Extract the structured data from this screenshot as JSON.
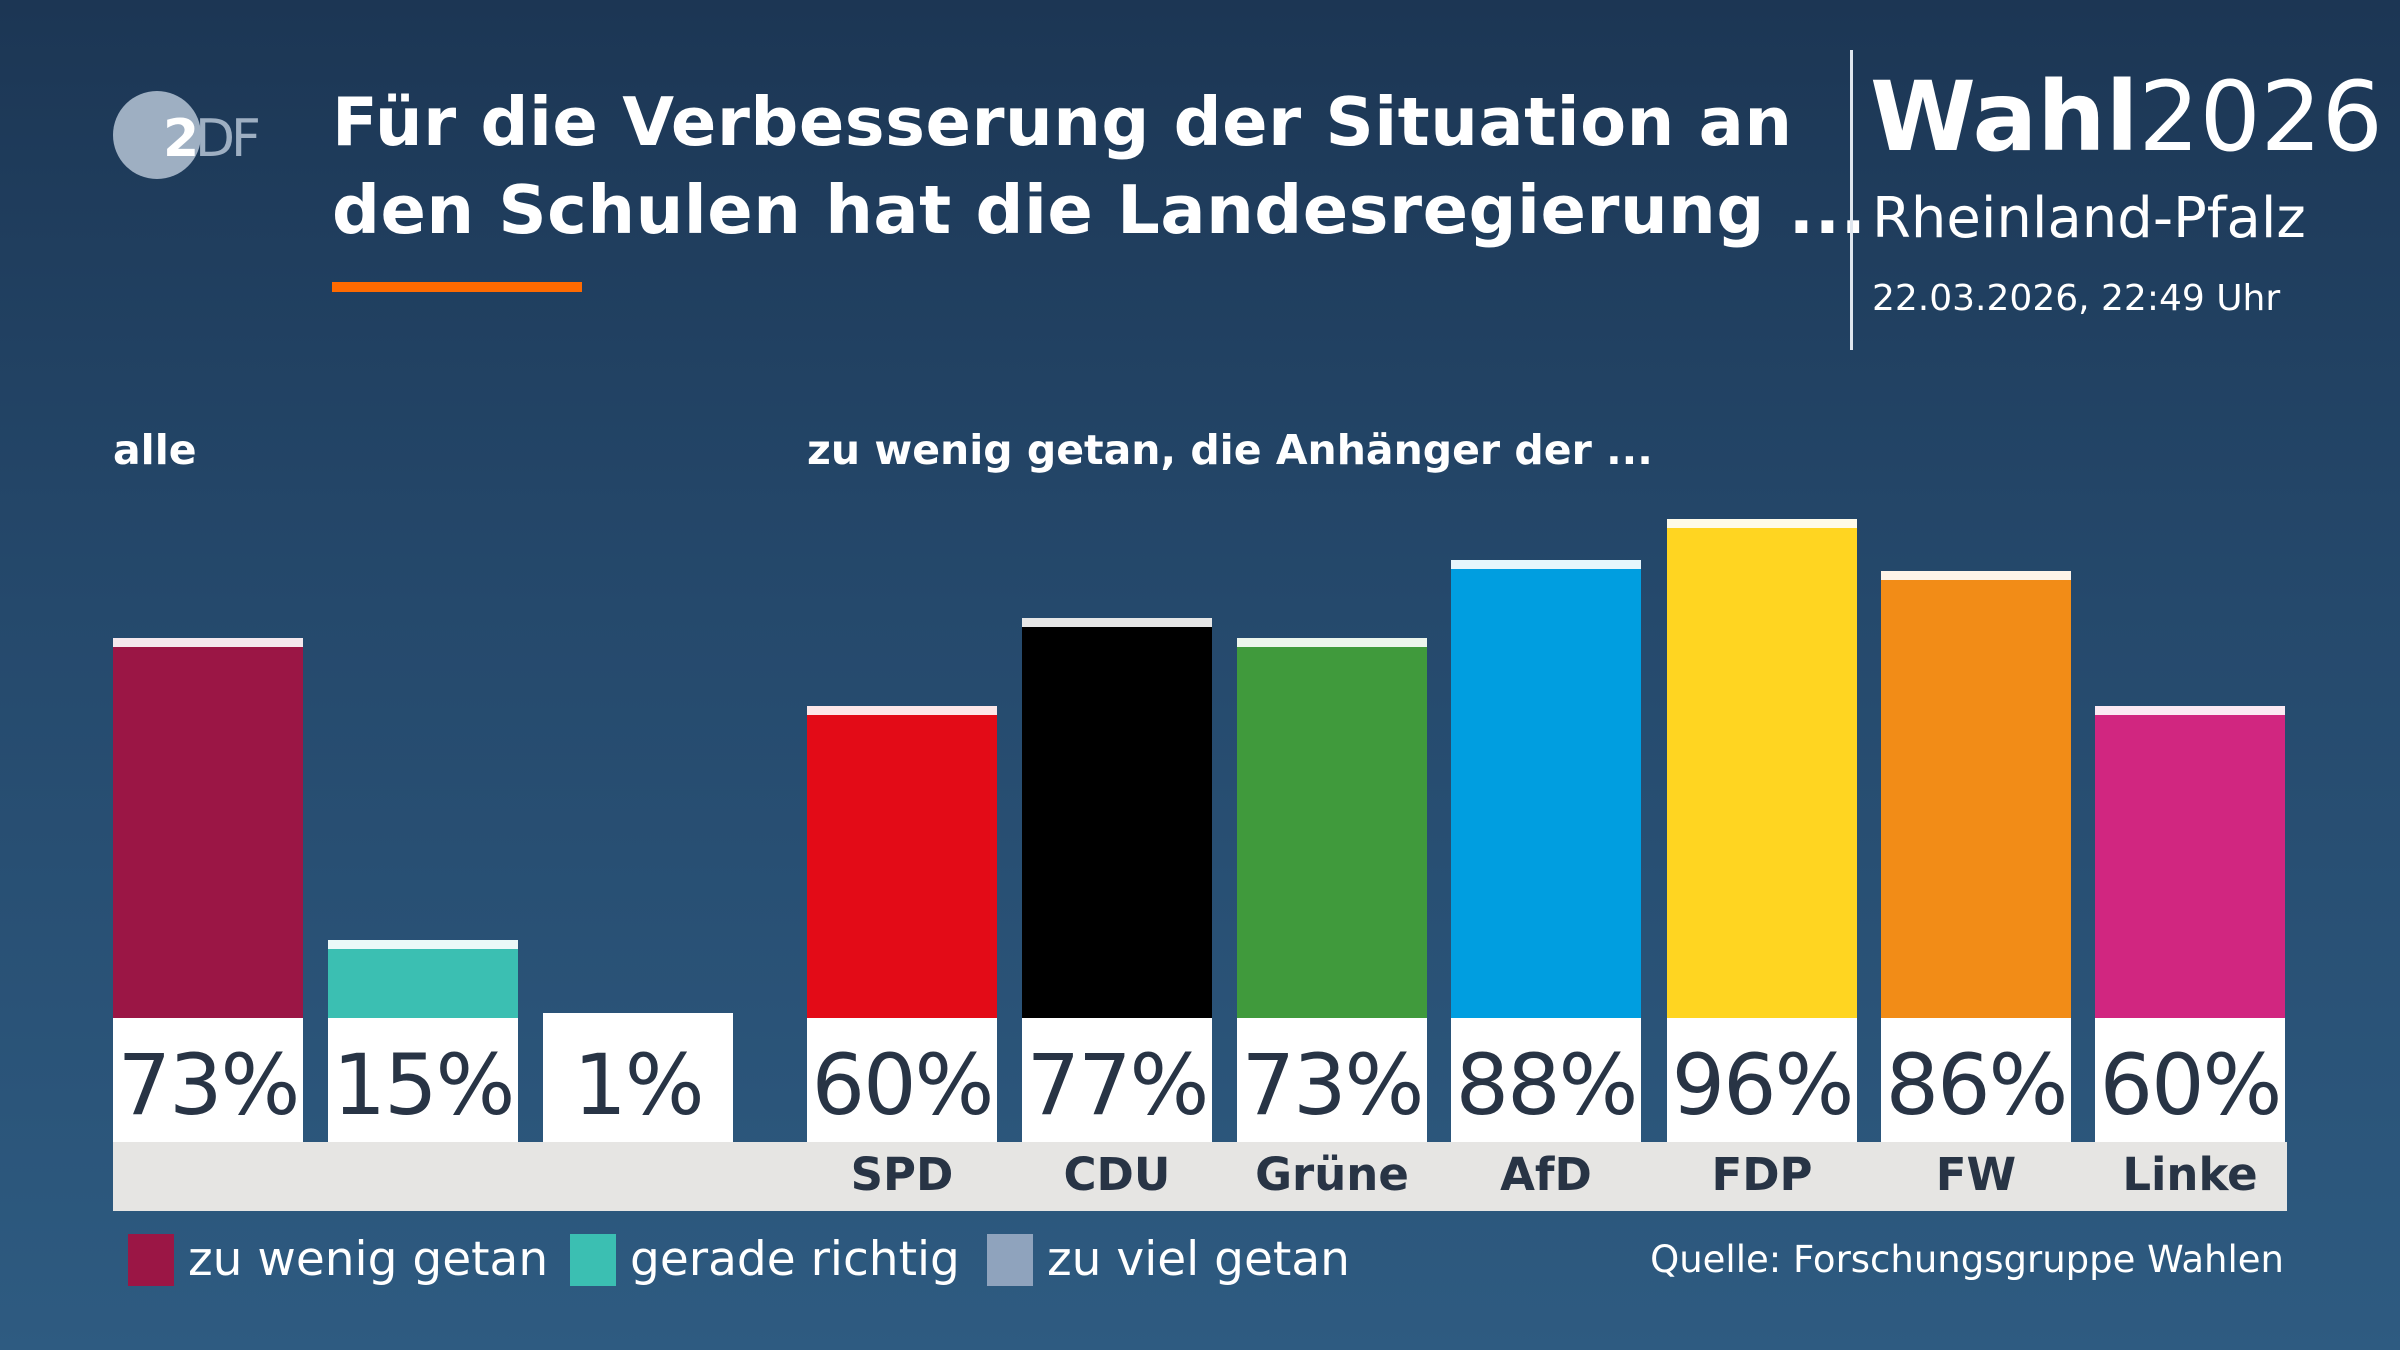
{
  "header": {
    "logo": "ZDF",
    "title_line1": "Für die Verbesserung der Situation an",
    "title_line2": "den Schulen hat die Landesregierung ...",
    "brand_bold": "Wahl",
    "brand_year": "2026",
    "region": "Rheinland-Pfalz",
    "date": "22.03.2026, 22:49 Uhr"
  },
  "source": "Quelle: Forschungsgruppe Wahlen",
  "colors": {
    "accent": "#ff6a00"
  },
  "chart_data": [
    {
      "type": "bar",
      "title": "alle",
      "categories": [
        "zu wenig getan",
        "gerade richtig",
        "zu viel getan"
      ],
      "values": [
        73,
        15,
        1
      ],
      "labels": [
        "73%",
        "15%",
        "1%"
      ],
      "colors": [
        "#9b1645",
        "#3bbfb2",
        "#8fa3bd"
      ],
      "ylim": [
        0,
        100
      ],
      "grid": false
    },
    {
      "type": "bar",
      "title": "zu wenig getan, die Anhänger der ...",
      "categories": [
        "SPD",
        "CDU",
        "Grüne",
        "AfD",
        "FDP",
        "FW",
        "Linke"
      ],
      "values": [
        60,
        77,
        73,
        88,
        96,
        86,
        60
      ],
      "labels": [
        "60%",
        "77%",
        "73%",
        "88%",
        "96%",
        "86%",
        "60%"
      ],
      "colors": [
        "#e30b17",
        "#000000",
        "#409a3c",
        "#009ee0",
        "#ffd521",
        "#f28c17",
        "#d12680"
      ],
      "ylim": [
        0,
        100
      ],
      "grid": false
    }
  ],
  "legend": [
    {
      "label": "zu wenig getan",
      "color": "#9b1645"
    },
    {
      "label": "gerade richtig",
      "color": "#3bbfb2"
    },
    {
      "label": "zu viel getan",
      "color": "#8fa3bd"
    }
  ]
}
